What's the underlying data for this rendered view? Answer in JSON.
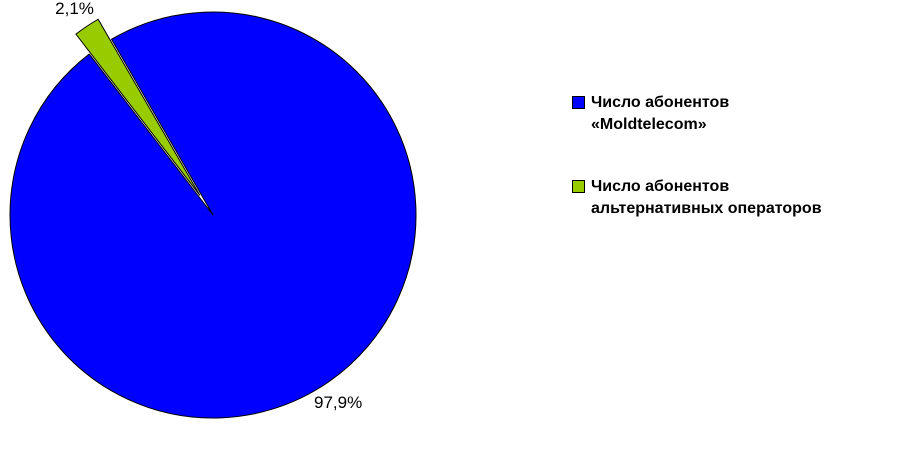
{
  "chart_data": {
    "type": "pie",
    "title": "",
    "slices": [
      {
        "name": "Число абонентов\n«Moldtelecom»",
        "value": 97.9,
        "label": "97,9%",
        "color": "#0000FF",
        "exploded": false
      },
      {
        "name": "Число абонентов\nальтернативных операторов",
        "value": 2.1,
        "label": "2,1%",
        "color": "#99CC00",
        "exploded": true
      }
    ],
    "legend_position": "right"
  }
}
